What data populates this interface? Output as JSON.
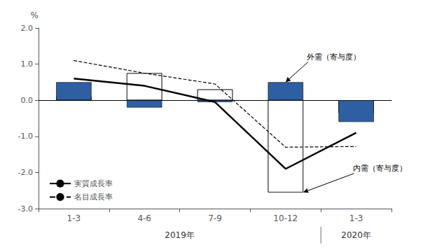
{
  "chart_data": {
    "type": "bar",
    "categories": [
      "1-3",
      "4-6",
      "7-9",
      "10-12",
      "1-3"
    ],
    "x_groups": [
      {
        "label": "2019年",
        "count": 4
      },
      {
        "label": "2020年",
        "count": 1
      }
    ],
    "series": [
      {
        "type": "bar",
        "annotation": "内需（寄与度）",
        "color": "#ffffff",
        "values": [
          0.1,
          0.75,
          0.3,
          -2.55,
          -0.35
        ]
      },
      {
        "type": "bar",
        "annotation": "外需（寄与度）",
        "color": "#2E5FA3",
        "values": [
          0.5,
          -0.2,
          -0.05,
          0.5,
          -0.6
        ]
      },
      {
        "type": "line",
        "name": "実質成長率",
        "color": "#000000",
        "line_style": "solid",
        "marker": "none",
        "values": [
          0.6,
          0.4,
          -0.05,
          -1.9,
          -0.9
        ]
      },
      {
        "type": "line",
        "name": "名目成長率",
        "color": "#000000",
        "line_style": "dashed",
        "marker": "none",
        "values": [
          1.1,
          0.75,
          0.45,
          -1.3,
          -1.28
        ]
      }
    ],
    "ylabel": "%",
    "ylim": [
      -3.0,
      2.0
    ],
    "yticks": [
      {
        "value": -3.0,
        "label": "-3.0"
      },
      {
        "value": -2.0,
        "label": "-2.0"
      },
      {
        "value": -1.0,
        "label": "-1.0"
      },
      {
        "value": 0.0,
        "label": "0.0"
      },
      {
        "value": 1.0,
        "label": "1.0"
      },
      {
        "value": 2.0,
        "label": "2.0"
      }
    ],
    "grid": false,
    "legend": "lower left"
  }
}
